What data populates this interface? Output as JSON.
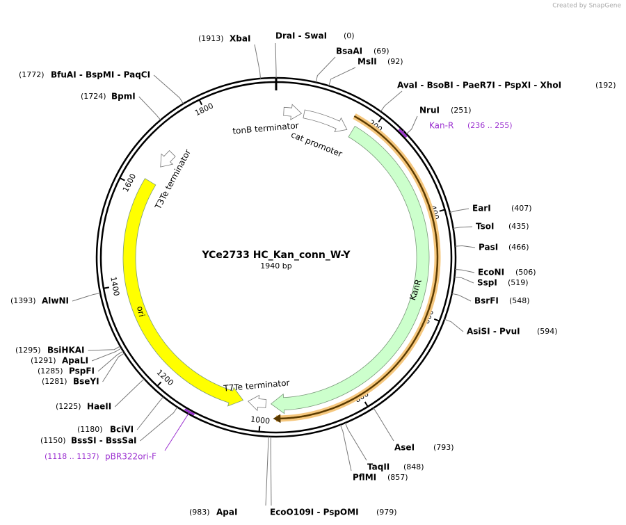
{
  "header": {
    "credit": "Created by SnapGene"
  },
  "map": {
    "name": "YCe2733 HC_Kan_conn_W-Y",
    "length": {
      "value": 1940,
      "label": "1940 bp"
    },
    "ruler_ticks": [
      200,
      400,
      600,
      800,
      1000,
      1200,
      1400,
      1600,
      1800
    ],
    "features": [
      {
        "name": "KanR",
        "color": "#ccffcc"
      },
      {
        "name": "ori",
        "color": "#ffff00"
      },
      {
        "name": "tonB terminator",
        "color": "#ffffff"
      },
      {
        "name": "cat promoter",
        "color": "#ffffff"
      },
      {
        "name": "T3Te terminator",
        "color": "#ffffff"
      },
      {
        "name": "T7Te terminator",
        "color": "#ffffff"
      }
    ],
    "primers": [
      {
        "name": "Kan-R",
        "start": 236,
        "end": 255,
        "range_label": "(236 .. 255)",
        "color": "#9b30d0"
      },
      {
        "name": "pBR322ori-F",
        "start": 1118,
        "end": 1137,
        "range_label": "(1118 .. 1137)",
        "color": "#9b30d0"
      }
    ],
    "sites": [
      {
        "name": "XbaI",
        "position": {
          "value": 1913,
          "label": "(1913)"
        }
      },
      {
        "name": "DraI - SwaI",
        "position": {
          "value": 0,
          "label": "(0)"
        }
      },
      {
        "name": "BsaAI",
        "position": {
          "value": 69,
          "label": "(69)"
        }
      },
      {
        "name": "MslI",
        "position": {
          "value": 92,
          "label": "(92)"
        }
      },
      {
        "name": "AvaI - BsoBI - PaeR7I - PspXI - XhoI",
        "position": {
          "value": 192,
          "label": "(192)"
        }
      },
      {
        "name": "NruI",
        "position": {
          "value": 251,
          "label": "(251)"
        }
      },
      {
        "name": "EarI",
        "position": {
          "value": 407,
          "label": "(407)"
        }
      },
      {
        "name": "TsoI",
        "position": {
          "value": 435,
          "label": "(435)"
        }
      },
      {
        "name": "PasI",
        "position": {
          "value": 466,
          "label": "(466)"
        }
      },
      {
        "name": "EcoNI",
        "position": {
          "value": 506,
          "label": "(506)"
        }
      },
      {
        "name": "SspI",
        "position": {
          "value": 519,
          "label": "(519)"
        }
      },
      {
        "name": "BsrFI",
        "position": {
          "value": 548,
          "label": "(548)"
        }
      },
      {
        "name": "AsiSI - PvuI",
        "position": {
          "value": 594,
          "label": "(594)"
        }
      },
      {
        "name": "AseI",
        "position": {
          "value": 793,
          "label": "(793)"
        }
      },
      {
        "name": "TaqII",
        "position": {
          "value": 848,
          "label": "(848)"
        }
      },
      {
        "name": "PflMI",
        "position": {
          "value": 857,
          "label": "(857)"
        }
      },
      {
        "name": "EcoO109I - PspOMI",
        "position": {
          "value": 979,
          "label": "(979)"
        }
      },
      {
        "name": "ApaI",
        "position": {
          "value": 983,
          "label": "(983)"
        }
      },
      {
        "name": "BssSI - BssSaI",
        "position": {
          "value": 1150,
          "label": "(1150)"
        }
      },
      {
        "name": "BciVI",
        "position": {
          "value": 1180,
          "label": "(1180)"
        }
      },
      {
        "name": "HaeII",
        "position": {
          "value": 1225,
          "label": "(1225)"
        }
      },
      {
        "name": "BseYI",
        "position": {
          "value": 1281,
          "label": "(1281)"
        }
      },
      {
        "name": "PspFI",
        "position": {
          "value": 1285,
          "label": "(1285)"
        }
      },
      {
        "name": "ApaLI",
        "position": {
          "value": 1291,
          "label": "(1291)"
        }
      },
      {
        "name": "BsiHKAI",
        "position": {
          "value": 1295,
          "label": "(1295)"
        }
      },
      {
        "name": "AlwNI",
        "position": {
          "value": 1393,
          "label": "(1393)"
        }
      },
      {
        "name": "BpmI",
        "position": {
          "value": 1724,
          "label": "(1724)"
        }
      },
      {
        "name": "BfuAI - BspMI - PaqCI",
        "position": {
          "value": 1772,
          "label": "(1772)"
        }
      }
    ]
  }
}
